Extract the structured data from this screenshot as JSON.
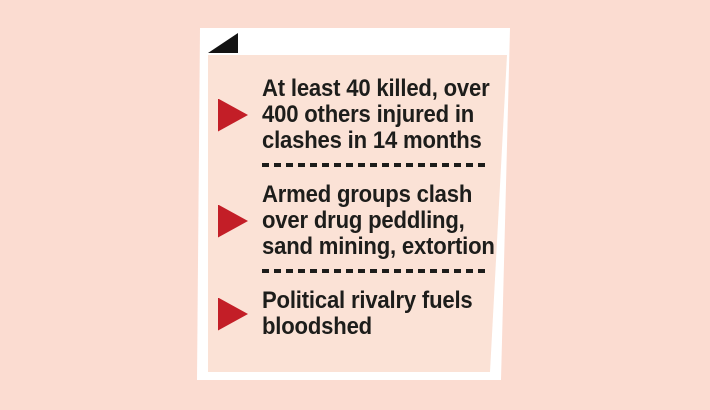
{
  "colors": {
    "page_bg": "#fbdcd1",
    "card_bg": "#ffffff",
    "inner_bg": "#fbe2d6",
    "accent_red": "#c31e27",
    "ink": "#1d1d1b",
    "corner_black": "#131313"
  },
  "card": {
    "corner_icon": "folded-corner-icon",
    "bullet_icon": "right-triangle-bullet-icon",
    "items": [
      {
        "text": "At least 40 killed, over 400 others injured in clashes in 14 months",
        "lines": [
          "At least 40 killed, over",
          "400 others injured in",
          "clashes in 14 months"
        ]
      },
      {
        "text": "Armed groups clash over drug peddling, sand mining, extortion",
        "lines": [
          "Armed groups clash",
          "over drug peddling,",
          "sand mining, extortion"
        ]
      },
      {
        "text": "Political rivalry fuels bloodshed",
        "lines": [
          "Political rivalry fuels",
          "bloodshed"
        ]
      }
    ]
  }
}
